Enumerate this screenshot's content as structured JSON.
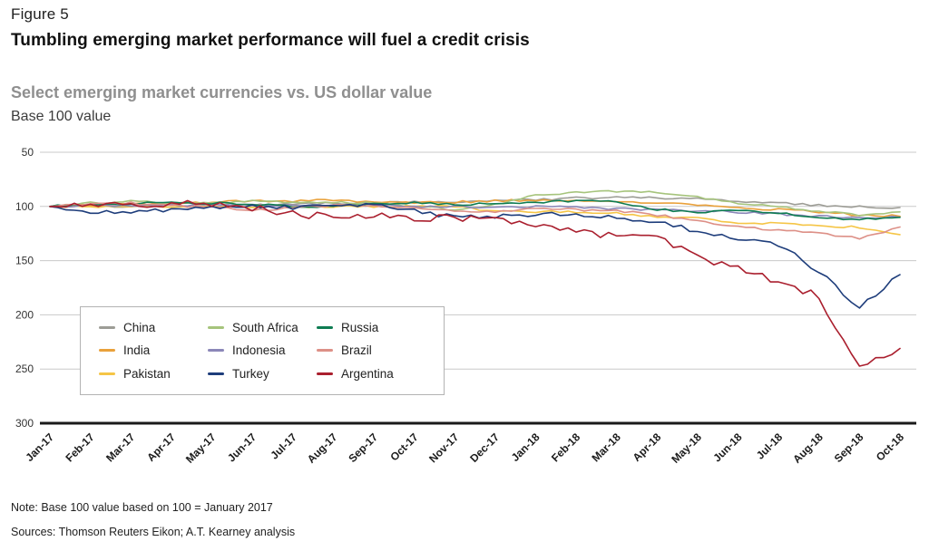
{
  "header": {
    "figure_label": "Figure 5",
    "title": "Tumbling emerging market performance will fuel a credit crisis",
    "subtitle": "Select emerging market currencies vs. US dollar value",
    "unit_label": "Base 100 value"
  },
  "footer": {
    "note": "Note: Base 100 value based on 100 = January 2017",
    "sources": "Sources: Thomson Reuters Eikon; A.T. Kearney analysis"
  },
  "chart_data": {
    "type": "line",
    "title": "Select emerging market currencies vs. US dollar value",
    "ylabel": "Base 100 value",
    "y_axis_inverted": true,
    "ylim": [
      50,
      300
    ],
    "yticks": [
      50,
      100,
      150,
      200,
      250,
      300
    ],
    "grid": true,
    "legend_position": "inside-bottom-left",
    "x": [
      "Jan-17",
      "Feb-17",
      "Mar-17",
      "Apr-17",
      "May-17",
      "Jun-17",
      "Jul-17",
      "Aug-17",
      "Sep-17",
      "Oct-17",
      "Nov-17",
      "Dec-17",
      "Jan-18",
      "Feb-18",
      "Mar-18",
      "Apr-18",
      "May-18",
      "Jun-18",
      "Jul-18",
      "Aug-18",
      "Sep-18",
      "Oct-18"
    ],
    "series": [
      {
        "name": "China",
        "color": "#9d9d96",
        "values": [
          100,
          100,
          100,
          101,
          100,
          99,
          98,
          97,
          97,
          96,
          96,
          95,
          94,
          92,
          92,
          92,
          93,
          95,
          97,
          99,
          100,
          101
        ]
      },
      {
        "name": "India",
        "color": "#e9a13b",
        "values": [
          100,
          99,
          98,
          97,
          96,
          95,
          95,
          94,
          96,
          96,
          96,
          95,
          94,
          95,
          96,
          97,
          99,
          101,
          103,
          105,
          108,
          109
        ]
      },
      {
        "name": "Pakistan",
        "color": "#f5c546",
        "values": [
          100,
          100,
          100,
          100,
          100,
          100,
          100,
          100,
          100,
          100,
          100,
          105,
          105,
          105,
          106,
          110,
          110,
          115,
          116,
          118,
          119,
          126
        ]
      },
      {
        "name": "South Africa",
        "color": "#a6c47c",
        "values": [
          100,
          97,
          95,
          97,
          97,
          95,
          96,
          96,
          97,
          100,
          103,
          98,
          90,
          87,
          86,
          87,
          91,
          97,
          100,
          104,
          108,
          105
        ]
      },
      {
        "name": "Indonesia",
        "color": "#8b87b8",
        "values": [
          100,
          99,
          99,
          99,
          99,
          99,
          99,
          99,
          99,
          100,
          100,
          101,
          100,
          101,
          102,
          103,
          104,
          105,
          107,
          109,
          110,
          110
        ]
      },
      {
        "name": "Turkey",
        "color": "#1e3d7b",
        "values": [
          100,
          105,
          104,
          103,
          102,
          100,
          101,
          100,
          98,
          104,
          110,
          109,
          107,
          108,
          110,
          114,
          123,
          130,
          135,
          160,
          193,
          163
        ]
      },
      {
        "name": "Russia",
        "color": "#0e7c52",
        "values": [
          100,
          98,
          97,
          96,
          97,
          98,
          100,
          100,
          98,
          97,
          98,
          98,
          96,
          95,
          95,
          103,
          105,
          104,
          106,
          110,
          112,
          110
        ]
      },
      {
        "name": "Brazil",
        "color": "#dd9087",
        "values": [
          100,
          98,
          97,
          99,
          101,
          104,
          101,
          99,
          99,
          101,
          104,
          105,
          102,
          103,
          104,
          108,
          113,
          119,
          122,
          125,
          129,
          119
        ]
      },
      {
        "name": "Argentina",
        "color": "#aa1f2e",
        "values": [
          100,
          99,
          98,
          97,
          98,
          101,
          107,
          109,
          108,
          110,
          111,
          113,
          119,
          124,
          127,
          128,
          148,
          158,
          170,
          183,
          250,
          231
        ]
      }
    ]
  }
}
